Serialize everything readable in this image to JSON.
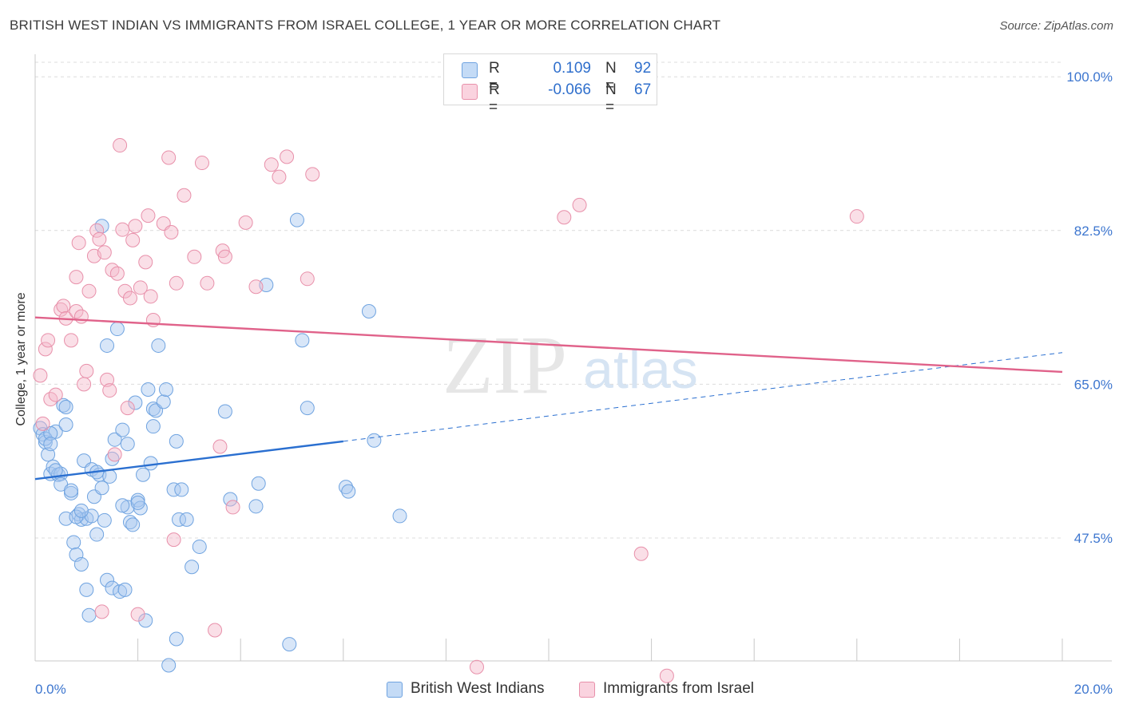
{
  "title": "BRITISH WEST INDIAN VS IMMIGRANTS FROM ISRAEL COLLEGE, 1 YEAR OR MORE CORRELATION CHART",
  "source": "Source: ZipAtlas.com",
  "watermark": {
    "zip": "ZIP",
    "atlas": "atlas"
  },
  "legend": {
    "r_label": "R =",
    "n_label": "N =",
    "rows": [
      {
        "r": "0.109",
        "n": "92",
        "color": "#a8c8f0"
      },
      {
        "r": "-0.066",
        "n": "67",
        "color": "#f5b8ca"
      }
    ]
  },
  "bottom_legend": [
    {
      "label": "British West Indians",
      "color": "#a8c8f0"
    },
    {
      "label": "Immigrants from Israel",
      "color": "#f5b8ca"
    }
  ],
  "chart_data": {
    "type": "scatter",
    "title": "BRITISH WEST INDIAN VS IMMIGRANTS FROM ISRAEL COLLEGE, 1 YEAR OR MORE CORRELATION CHART",
    "xlabel": "",
    "ylabel": "College, 1 year or more",
    "xlim": [
      0,
      20
    ],
    "ylim": [
      33.5,
      102.2
    ],
    "x_tick_labels": [
      {
        "value": 0,
        "label": "0.0%"
      },
      {
        "value": 20,
        "label": "20.0%"
      }
    ],
    "x_minor_ticks": [
      2,
      4,
      6,
      8,
      10,
      12,
      14,
      16,
      18,
      20
    ],
    "y_ticks": [
      {
        "value": 100.0,
        "label": "100.0%"
      },
      {
        "value": 82.5,
        "label": "82.5%"
      },
      {
        "value": 65.0,
        "label": "65.0%"
      },
      {
        "value": 47.5,
        "label": "47.5%"
      }
    ],
    "series": [
      {
        "name": "British West Indians",
        "color": "#a8c8f0",
        "stroke": "#6fa3e0",
        "trend_color": "#2a6fd0",
        "trend": {
          "x0": 0,
          "y0": 54.2,
          "x1": 6.0,
          "y1": 58.5,
          "dash_to_x": 20.0,
          "dash_to_y": 68.6
        },
        "points": [
          [
            0.1,
            60.0
          ],
          [
            0.15,
            59.3
          ],
          [
            0.2,
            58.4
          ],
          [
            0.25,
            57.0
          ],
          [
            0.3,
            54.8
          ],
          [
            0.35,
            55.6
          ],
          [
            0.4,
            59.6
          ],
          [
            0.45,
            54.7
          ],
          [
            0.5,
            54.8
          ],
          [
            0.55,
            62.6
          ],
          [
            0.6,
            60.4
          ],
          [
            0.7,
            52.6
          ],
          [
            0.75,
            47.0
          ],
          [
            0.8,
            45.6
          ],
          [
            0.85,
            50.2
          ],
          [
            0.9,
            49.6
          ],
          [
            0.95,
            56.3
          ],
          [
            1.0,
            49.7
          ],
          [
            0.2,
            58.8
          ],
          [
            0.3,
            59.4
          ],
          [
            0.4,
            55.2
          ],
          [
            0.5,
            53.6
          ],
          [
            0.6,
            49.7
          ],
          [
            0.7,
            52.9
          ],
          [
            0.8,
            49.9
          ],
          [
            0.9,
            44.5
          ],
          [
            1.0,
            41.6
          ],
          [
            1.05,
            38.7
          ],
          [
            1.1,
            55.3
          ],
          [
            1.15,
            52.2
          ],
          [
            1.2,
            47.9
          ],
          [
            1.25,
            54.7
          ],
          [
            1.3,
            53.2
          ],
          [
            1.35,
            49.5
          ],
          [
            1.1,
            50.0
          ],
          [
            1.2,
            55.0
          ],
          [
            1.3,
            83.0
          ],
          [
            1.4,
            42.7
          ],
          [
            1.4,
            69.4
          ],
          [
            1.45,
            54.5
          ],
          [
            1.5,
            41.8
          ],
          [
            1.5,
            56.5
          ],
          [
            1.55,
            58.7
          ],
          [
            1.6,
            71.3
          ],
          [
            1.65,
            41.4
          ],
          [
            1.7,
            59.8
          ],
          [
            1.75,
            41.6
          ],
          [
            1.8,
            58.2
          ],
          [
            1.8,
            51.0
          ],
          [
            1.85,
            49.3
          ],
          [
            1.9,
            49.0
          ],
          [
            1.95,
            62.9
          ],
          [
            2.0,
            51.8
          ],
          [
            2.05,
            50.9
          ],
          [
            2.1,
            54.7
          ],
          [
            2.2,
            64.4
          ],
          [
            2.25,
            56.0
          ],
          [
            2.3,
            62.2
          ],
          [
            2.3,
            60.2
          ],
          [
            2.35,
            62.0
          ],
          [
            2.4,
            69.4
          ],
          [
            2.5,
            63.0
          ],
          [
            2.55,
            64.4
          ],
          [
            2.6,
            33.0
          ],
          [
            2.7,
            53.0
          ],
          [
            2.75,
            58.5
          ],
          [
            2.8,
            49.6
          ],
          [
            2.85,
            53.0
          ],
          [
            2.95,
            49.6
          ],
          [
            3.05,
            44.2
          ],
          [
            3.2,
            46.5
          ],
          [
            3.7,
            61.9
          ],
          [
            3.8,
            51.9
          ],
          [
            4.3,
            51.1
          ],
          [
            4.35,
            53.7
          ],
          [
            4.5,
            76.3
          ],
          [
            5.1,
            83.7
          ],
          [
            5.2,
            70.0
          ],
          [
            5.3,
            62.3
          ],
          [
            6.05,
            53.3
          ],
          [
            6.1,
            52.8
          ],
          [
            6.5,
            73.3
          ],
          [
            6.6,
            58.6
          ],
          [
            7.1,
            50.0
          ],
          [
            0.3,
            58.2
          ],
          [
            0.6,
            62.4
          ],
          [
            0.9,
            50.6
          ],
          [
            1.7,
            51.2
          ],
          [
            2.15,
            38.1
          ],
          [
            2.75,
            36.0
          ],
          [
            4.95,
            35.4
          ],
          [
            2.0,
            51.5
          ]
        ]
      },
      {
        "name": "Immigrants from Israel",
        "color": "#f5b8ca",
        "stroke": "#e890aa",
        "trend_color": "#e0628a",
        "trend": {
          "x0": 0,
          "y0": 72.6,
          "x1": 20.0,
          "y1": 66.4
        },
        "points": [
          [
            0.1,
            66.0
          ],
          [
            0.15,
            60.5
          ],
          [
            0.2,
            69.0
          ],
          [
            0.25,
            70.0
          ],
          [
            0.3,
            63.3
          ],
          [
            0.4,
            63.8
          ],
          [
            0.5,
            73.5
          ],
          [
            0.55,
            73.9
          ],
          [
            0.6,
            72.5
          ],
          [
            0.7,
            70.0
          ],
          [
            0.8,
            73.3
          ],
          [
            0.8,
            77.2
          ],
          [
            0.85,
            81.1
          ],
          [
            0.9,
            72.7
          ],
          [
            0.95,
            65.0
          ],
          [
            1.0,
            66.5
          ],
          [
            1.05,
            75.6
          ],
          [
            1.15,
            79.6
          ],
          [
            1.2,
            82.5
          ],
          [
            1.25,
            81.5
          ],
          [
            1.3,
            39.1
          ],
          [
            1.35,
            80.0
          ],
          [
            1.4,
            65.5
          ],
          [
            1.45,
            64.3
          ],
          [
            1.5,
            78.0
          ],
          [
            1.55,
            57.0
          ],
          [
            1.6,
            77.6
          ],
          [
            1.65,
            92.2
          ],
          [
            1.7,
            82.6
          ],
          [
            1.75,
            75.6
          ],
          [
            1.8,
            62.3
          ],
          [
            1.85,
            74.8
          ],
          [
            1.9,
            81.4
          ],
          [
            1.95,
            83.0
          ],
          [
            2.0,
            38.8
          ],
          [
            2.05,
            76.0
          ],
          [
            2.15,
            78.9
          ],
          [
            2.2,
            84.2
          ],
          [
            2.25,
            75.0
          ],
          [
            2.3,
            72.3
          ],
          [
            2.5,
            83.3
          ],
          [
            2.6,
            90.8
          ],
          [
            2.65,
            82.3
          ],
          [
            2.7,
            47.3
          ],
          [
            2.75,
            76.5
          ],
          [
            2.9,
            86.5
          ],
          [
            3.1,
            79.5
          ],
          [
            3.25,
            90.2
          ],
          [
            3.35,
            76.5
          ],
          [
            3.5,
            37.0
          ],
          [
            3.6,
            57.9
          ],
          [
            3.65,
            80.2
          ],
          [
            3.7,
            79.5
          ],
          [
            3.85,
            51.0
          ],
          [
            4.1,
            83.4
          ],
          [
            4.3,
            76.1
          ],
          [
            4.6,
            90.0
          ],
          [
            4.75,
            88.6
          ],
          [
            4.9,
            90.9
          ],
          [
            5.3,
            77.0
          ],
          [
            5.4,
            88.9
          ],
          [
            8.6,
            32.8
          ],
          [
            10.3,
            84.0
          ],
          [
            10.6,
            85.4
          ],
          [
            11.8,
            45.7
          ],
          [
            12.3,
            31.8
          ],
          [
            16.0,
            84.1
          ]
        ]
      }
    ]
  }
}
